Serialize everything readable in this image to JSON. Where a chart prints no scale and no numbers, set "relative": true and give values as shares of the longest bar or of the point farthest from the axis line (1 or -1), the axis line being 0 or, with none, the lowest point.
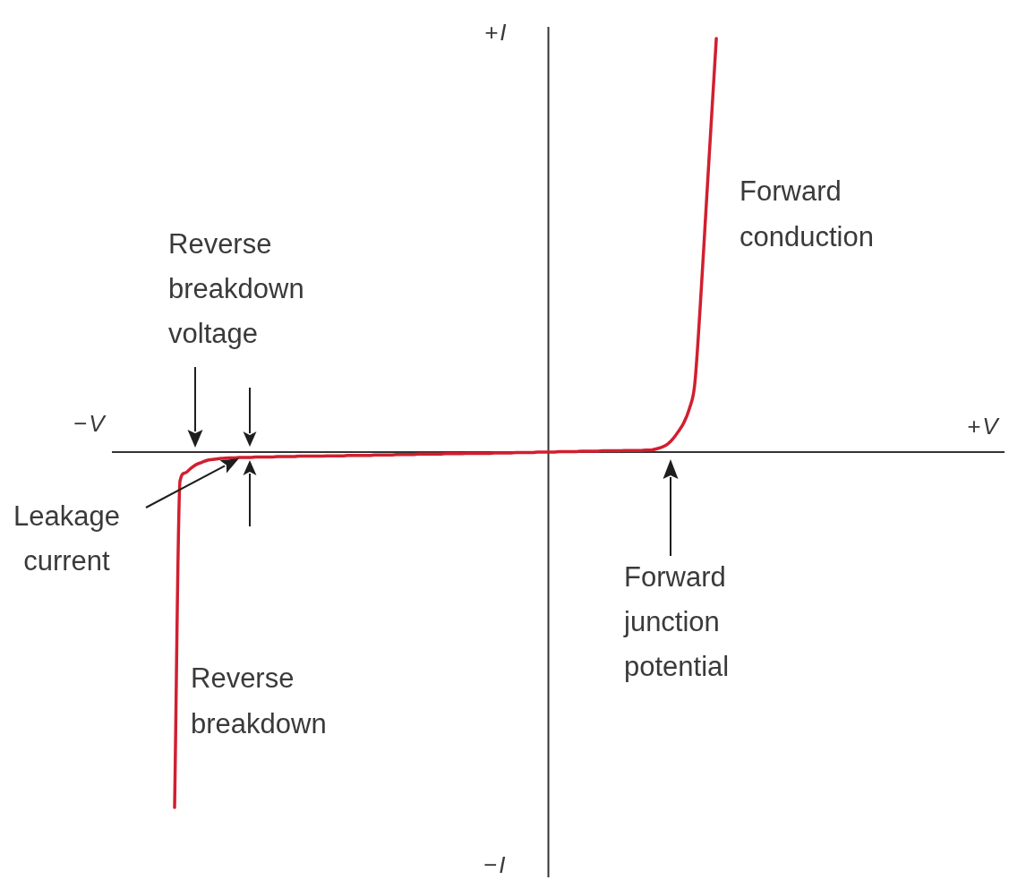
{
  "chart_data": {
    "type": "line",
    "categories": [
      null,
      null,
      null,
      null,
      null,
      null,
      null,
      null,
      null,
      null,
      null,
      null,
      null,
      null,
      null,
      null,
      null,
      null,
      null,
      null,
      null,
      null,
      null,
      null,
      null,
      null,
      null,
      null,
      null,
      null,
      null,
      null,
      null,
      null,
      null,
      null,
      null,
      null,
      null,
      null,
      null,
      null,
      null,
      null,
      null,
      null,
      null,
      null,
      null,
      null,
      null,
      null,
      null,
      null,
      null,
      null,
      null,
      null,
      null,
      null,
      null,
      null,
      null,
      null,
      null,
      null,
      null,
      null,
      null,
      null,
      null,
      null,
      null,
      null,
      null,
      null,
      null,
      null,
      null,
      null,
      null,
      null,
      null,
      null,
      null,
      null,
      null,
      null,
      null,
      null,
      null,
      null,
      null,
      null,
      null,
      null,
      null,
      null,
      null,
      null,
      null
    ],
    "values": [
      -0.859,
      -0.07,
      -0.05,
      -0.039,
      -0.03,
      -0.025,
      -0.02,
      -0.018,
      -0.016,
      -0.015,
      -0.014,
      -0.014,
      -0.013,
      -0.013,
      -0.013,
      -0.012,
      -0.012,
      -0.012,
      -0.012,
      -0.011,
      -0.011,
      -0.011,
      -0.011,
      -0.01,
      -0.01,
      -0.01,
      -0.01,
      -0.01,
      -0.009,
      -0.009,
      -0.009,
      -0.009,
      -0.008,
      -0.008,
      -0.008,
      -0.008,
      -0.008,
      -0.007,
      -0.007,
      -0.007,
      -0.007,
      -0.006,
      -0.006,
      -0.006,
      -0.006,
      -0.005,
      -0.005,
      -0.005,
      -0.005,
      -0.005,
      -0.004,
      -0.004,
      -0.004,
      -0.004,
      -0.003,
      -0.003,
      -0.003,
      -0.003,
      -0.003,
      -0.002,
      -0.002,
      -0.002,
      -0.002,
      -0.001,
      -0.001,
      -0.001,
      -0.001,
      0,
      0,
      0,
      0,
      0.001,
      0.001,
      0.001,
      0.001,
      0.002,
      0.002,
      0.002,
      0.002,
      0.003,
      0.003,
      0.003,
      0.003,
      0.004,
      0.004,
      0.004,
      0.004,
      0.005,
      0.005,
      0.008,
      0.012,
      0.019,
      0.032,
      0.05,
      0.071,
      0.104,
      0.162,
      0.346,
      0.565,
      0.784,
      1
    ],
    "color": "#d11f2f",
    "relative": true,
    "marker": "none",
    "line_style": "solid",
    "annotations": [
      "+I",
      "−I",
      "−V",
      "+V",
      "Forward conduction",
      "Reverse breakdown voltage",
      "Leakage current",
      "Forward junction potential",
      "Reverse breakdown"
    ]
  }
}
